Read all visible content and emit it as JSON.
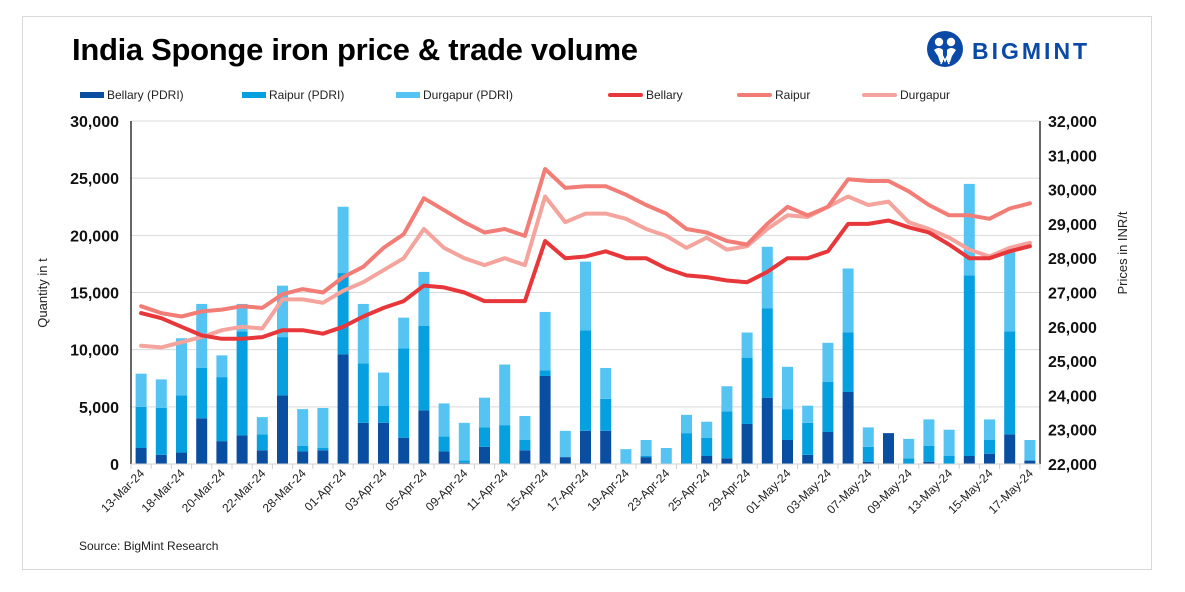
{
  "header": {
    "title": "India Sponge iron price & trade volume",
    "logo_text": "BIGMINT",
    "logo_icon": "bigmint-people-icon"
  },
  "footer": {
    "source": "Source: BigMint Research"
  },
  "colors": {
    "bellary_bar": "#0a4ea2",
    "raipur_bar": "#06a0e0",
    "durgapur_bar": "#56c4f2",
    "bellary_line": "#e8373a",
    "raipur_line": "#f27d76",
    "durgapur_line": "#f4a39d",
    "grid": "#d9d9d9"
  },
  "chart_data": {
    "type": "bar",
    "subtype": "stacked-bar-with-lines-dual-axis",
    "title": "India Sponge iron price & trade volume",
    "ylabel": "Quantity in t",
    "y2label": "Prices in INR/t",
    "ylim": [
      0,
      30000
    ],
    "y2lim": [
      22000,
      32000
    ],
    "yticks": [
      "0",
      "5,000",
      "10,000",
      "15,000",
      "20,000",
      "25,000",
      "30,000"
    ],
    "y2ticks": [
      "22,000",
      "23,000",
      "24,000",
      "25,000",
      "26,000",
      "27,000",
      "28,000",
      "29,000",
      "30,000",
      "31,000",
      "32,000"
    ],
    "grid": true,
    "legend_position": "top",
    "x_tick_labels": [
      "13-Mar-24",
      "18-Mar-24",
      "20-Mar-24",
      "22-Mar-24",
      "28-Mar-24",
      "01-Apr-24",
      "03-Apr-24",
      "05-Apr-24",
      "09-Apr-24",
      "11-Apr-24",
      "15-Apr-24",
      "17-Apr-24",
      "19-Apr-24",
      "23-Apr-24",
      "25-Apr-24",
      "29-Apr-24",
      "01-May-24",
      "03-May-24",
      "07-May-24",
      "09-May-24",
      "13-May-24",
      "15-May-24",
      "17-May-24"
    ],
    "n_points": 45,
    "label_every": 2,
    "series": [
      {
        "name": "Bellary (PDRI)",
        "kind": "bar",
        "axis": "left",
        "values": [
          1400,
          800,
          1000,
          4000,
          2000,
          2500,
          1200,
          6000,
          1100,
          1200,
          9600,
          3600,
          3600,
          2300,
          4700,
          1100,
          100,
          1500,
          0,
          1200,
          7700,
          600,
          2900,
          2900,
          0,
          600,
          0,
          0,
          700,
          500,
          3500,
          5800,
          2100,
          800,
          2800,
          6300,
          200,
          2700,
          0,
          200,
          0,
          700,
          900,
          2600,
          300
        ]
      },
      {
        "name": "Raipur (PDRI)",
        "kind": "bar",
        "axis": "left",
        "values": [
          3600,
          4100,
          5000,
          4400,
          5600,
          9100,
          1400,
          5100,
          500,
          200,
          7100,
          5200,
          1500,
          7800,
          7400,
          1300,
          200,
          1700,
          3400,
          900,
          500,
          0,
          8800,
          2800,
          0,
          100,
          0,
          2700,
          1600,
          4100,
          5800,
          7800,
          2700,
          2800,
          4400,
          5200,
          1300,
          0,
          500,
          1400,
          700,
          15800,
          1200,
          9000,
          0
        ]
      },
      {
        "name": "Durgapur (PDRI)",
        "kind": "bar",
        "axis": "left",
        "values": [
          2900,
          2500,
          5000,
          5600,
          1900,
          2400,
          1500,
          4500,
          3200,
          3500,
          5800,
          5200,
          2900,
          2700,
          4700,
          2900,
          3300,
          2600,
          5300,
          2100,
          5100,
          2300,
          6000,
          2700,
          1300,
          1400,
          1400,
          1600,
          1400,
          2200,
          2200,
          5400,
          3700,
          1500,
          3400,
          5600,
          1700,
          0,
          1700,
          2300,
          2300,
          8000,
          1800,
          7100,
          1800
        ]
      },
      {
        "name": "Bellary",
        "kind": "line",
        "axis": "right",
        "values": [
          26400,
          26250,
          26000,
          25750,
          25650,
          25650,
          25700,
          25900,
          25900,
          25800,
          26000,
          26300,
          26550,
          26750,
          27200,
          27150,
          27000,
          26750,
          26750,
          26750,
          28500,
          28000,
          28050,
          28200,
          28000,
          28000,
          27700,
          27500,
          27450,
          27350,
          27300,
          27600,
          28000,
          28000,
          28200,
          29000,
          29000,
          29100,
          28900,
          28750,
          28400,
          28000,
          28000,
          28200,
          28350
        ]
      },
      {
        "name": "Raipur",
        "kind": "line",
        "axis": "right",
        "values": [
          26600,
          26400,
          26300,
          26450,
          26500,
          26600,
          26550,
          26950,
          27100,
          27000,
          27450,
          27750,
          28300,
          28700,
          29750,
          29400,
          29050,
          28750,
          28850,
          28650,
          30600,
          30050,
          30100,
          30100,
          29850,
          29550,
          29300,
          28850,
          28750,
          28500,
          28400,
          29000,
          29500,
          29250,
          29500,
          30300,
          30250,
          30250,
          29950,
          29550,
          29250,
          29250,
          29150,
          29450,
          29600
        ]
      },
      {
        "name": "Durgapur",
        "kind": "line",
        "axis": "right",
        "values": [
          25450,
          25400,
          25550,
          25700,
          25900,
          26000,
          25950,
          26800,
          26800,
          26700,
          27050,
          27300,
          27650,
          28000,
          28850,
          28300,
          28000,
          27800,
          28000,
          27800,
          29800,
          29050,
          29300,
          29300,
          29150,
          28850,
          28650,
          28300,
          28600,
          28250,
          28350,
          28850,
          29250,
          29200,
          29500,
          29800,
          29550,
          29650,
          29050,
          28850,
          28600,
          28250,
          28050,
          28300,
          28450
        ]
      }
    ]
  }
}
